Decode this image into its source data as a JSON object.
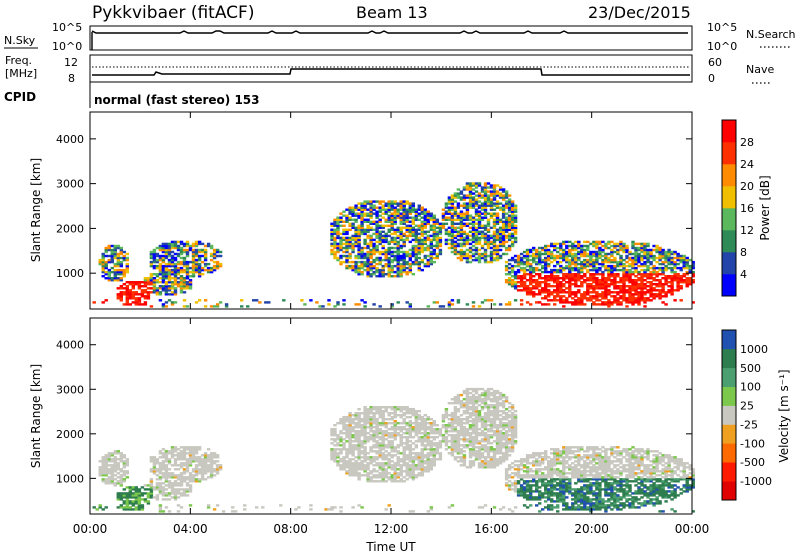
{
  "header": {
    "station": "Pykkvibaer (fitACF)",
    "beam": "Beam 13",
    "date": "23/Dec/2015"
  },
  "strips": {
    "nsky_label": "N.Sky",
    "nsky_ticks": [
      "10^5",
      "10^0"
    ],
    "nsearch_label": "N.Search",
    "nsearch_ticks": [
      "10^5",
      "10^0"
    ],
    "freq_label_1": "Freq.",
    "freq_label_2": "[MHz]",
    "freq_ticks": [
      "12",
      "8"
    ],
    "nave_label": "Nave",
    "nave_ticks": [
      "60",
      "0"
    ],
    "cpid_label": "CPID",
    "cpid_text": "normal (fast stereo) 153"
  },
  "colors": {
    "power": [
      "#0000ff",
      "#2244aa",
      "#2e8b57",
      "#5cb85c",
      "#f0c000",
      "#ff8c00",
      "#ff3000",
      "#ff0000"
    ],
    "velocity": [
      "#2050b0",
      "#2e7d4f",
      "#4c9f70",
      "#7cc84c",
      "#c8c8c0",
      "#f0a020",
      "#ff6a00",
      "#ff1a00",
      "#e00000"
    ]
  },
  "chart_data": [
    {
      "type": "heatmap",
      "name": "power",
      "ylabel": "Slant Range [km]",
      "yticks": [
        "4000",
        "3000",
        "2000",
        "1000"
      ],
      "ylim": [
        200,
        4600
      ],
      "colorbar_label": "Power [dB]",
      "colorbar_ticks": [
        "28",
        "24",
        "20",
        "16",
        "12",
        "8",
        "4"
      ],
      "colorbar_range": [
        0,
        32
      ]
    },
    {
      "type": "heatmap",
      "name": "velocity",
      "ylabel": "Slant Range [km]",
      "yticks": [
        "4000",
        "3000",
        "2000",
        "1000"
      ],
      "ylim": [
        200,
        4600
      ],
      "colorbar_label": "Velocity [m s⁻¹]",
      "colorbar_ticks": [
        "1000",
        "500",
        "100",
        "25",
        "-25",
        "-100",
        "-500",
        "-1000"
      ],
      "xlabel": "Time UT",
      "xticks": [
        "00:00",
        "04:00",
        "08:00",
        "12:00",
        "16:00",
        "20:00",
        "00:00"
      ],
      "xlim_hours": [
        0,
        24
      ]
    }
  ]
}
